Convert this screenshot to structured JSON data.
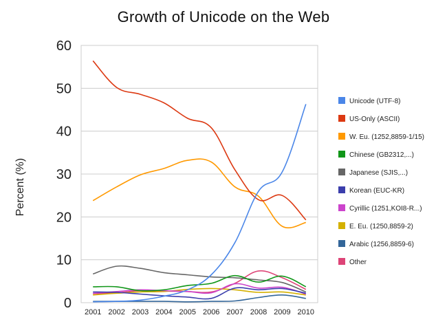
{
  "chart_data": {
    "type": "line",
    "title": "Growth of Unicode on the Web",
    "xlabel": "",
    "ylabel": "Percent (%)",
    "ylim": [
      0,
      60
    ],
    "yticks": [
      0,
      10,
      20,
      30,
      40,
      50,
      60
    ],
    "categories": [
      "2001",
      "2002",
      "2003",
      "2004",
      "2005",
      "2006",
      "2007",
      "2008",
      "2009",
      "2010"
    ],
    "grid": true,
    "legend_position": "right",
    "series": [
      {
        "name": "Unicode (UTF-8)",
        "color": "#4a86e8",
        "values": [
          0.2,
          0.3,
          0.6,
          1.5,
          3.0,
          6.5,
          14.0,
          26.0,
          30.5,
          46.3
        ]
      },
      {
        "name": "US-Only (ASCII)",
        "color": "#dc3912",
        "values": [
          56.4,
          50.2,
          48.6,
          46.6,
          43.0,
          40.8,
          31.0,
          24.0,
          25.0,
          19.3
        ]
      },
      {
        "name": "W. Eu. (1252,8859-1/15)",
        "color": "#ff9900",
        "values": [
          23.8,
          27.0,
          29.8,
          31.3,
          33.2,
          32.8,
          27.0,
          24.8,
          17.8,
          18.7
        ]
      },
      {
        "name": "Chinese (GB2312,...)",
        "color": "#109618",
        "values": [
          3.7,
          3.7,
          2.8,
          3.0,
          4.0,
          4.5,
          6.3,
          4.8,
          6.2,
          3.7
        ]
      },
      {
        "name": "Japanese (SJIS,...)",
        "color": "#666666",
        "values": [
          6.7,
          8.5,
          8.0,
          7.0,
          6.5,
          6.0,
          5.8,
          5.3,
          4.7,
          2.5
        ]
      },
      {
        "name": "Korean (EUC-KR)",
        "color": "#3b3eac",
        "values": [
          2.5,
          2.4,
          2.0,
          1.6,
          1.3,
          1.0,
          3.4,
          3.0,
          3.3,
          2.2
        ]
      },
      {
        "name": "Cyrillic (1251,KOI8-R...)",
        "color": "#cc44cc",
        "values": [
          2.2,
          2.6,
          3.0,
          2.8,
          2.6,
          2.3,
          4.4,
          3.4,
          3.6,
          2.0
        ]
      },
      {
        "name": "E. Eu. (1250,8859-2)",
        "color": "#d4b000",
        "values": [
          1.8,
          2.2,
          2.5,
          2.6,
          3.1,
          3.3,
          3.0,
          2.4,
          2.5,
          1.8
        ]
      },
      {
        "name": "Arabic (1256,8859-6)",
        "color": "#336699",
        "values": [
          0.3,
          0.3,
          0.3,
          0.3,
          0.2,
          0.3,
          0.4,
          1.2,
          1.8,
          1.0
        ]
      },
      {
        "name": "Other",
        "color": "#dd4477",
        "values": [
          2.1,
          2.3,
          2.8,
          2.7,
          2.6,
          2.5,
          4.5,
          7.4,
          5.8,
          3.1
        ]
      }
    ]
  }
}
